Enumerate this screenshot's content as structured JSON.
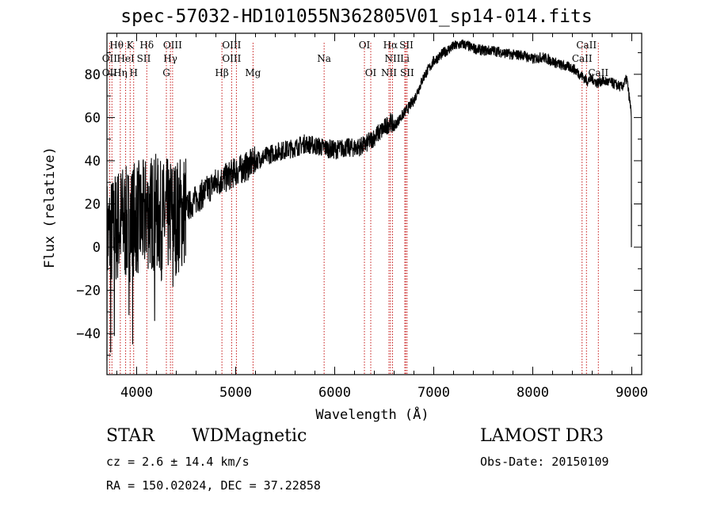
{
  "chart_data": {
    "type": "line",
    "title": "spec-57032-HD101055N362805V01_sp14-014.fits",
    "xlabel": "Wavelength (Å)",
    "ylabel": "Flux (relative)",
    "xlim": [
      3700,
      9100
    ],
    "ylim": [
      -59,
      99
    ],
    "xticks": [
      4000,
      5000,
      6000,
      7000,
      8000,
      9000
    ],
    "xtick_labels": [
      "4000",
      "5000",
      "6000",
      "7000",
      "8000",
      "9000"
    ],
    "yticks": [
      -40,
      -20,
      0,
      20,
      40,
      60,
      80
    ],
    "ytick_labels": [
      "−40",
      "−20",
      "0",
      "20",
      "40",
      "60",
      "80"
    ],
    "grid": false,
    "series": [
      {
        "name": "flux",
        "x": [
          3700,
          3750,
          3800,
          3850,
          3900,
          3950,
          4000,
          4050,
          4100,
          4150,
          4200,
          4250,
          4300,
          4350,
          4400,
          4450,
          4500,
          4600,
          4700,
          4800,
          4900,
          5000,
          5100,
          5200,
          5300,
          5400,
          5500,
          5600,
          5700,
          5800,
          5900,
          6000,
          6100,
          6200,
          6300,
          6400,
          6500,
          6560,
          6600,
          6700,
          6800,
          6900,
          7000,
          7100,
          7200,
          7300,
          7400,
          7500,
          7600,
          7700,
          7800,
          7900,
          8000,
          8100,
          8200,
          8300,
          8400,
          8500,
          8550,
          8600,
          8650,
          8700,
          8800,
          8850,
          8900,
          8950,
          9000
        ],
        "y": [
          5,
          6,
          10,
          12,
          10,
          12,
          14,
          12,
          16,
          16,
          16,
          12,
          14,
          16,
          14,
          16,
          18,
          22,
          26,
          30,
          32,
          35,
          37,
          40,
          42,
          44,
          45,
          46,
          48,
          47,
          46,
          45,
          46,
          46,
          47,
          51,
          55,
          58,
          56,
          62,
          68,
          79,
          86,
          90,
          93,
          94,
          92,
          91,
          91,
          90,
          89,
          89,
          87,
          88,
          86,
          84,
          83,
          79,
          77,
          78,
          76,
          77,
          76,
          75,
          74,
          78,
          60
        ]
      }
    ],
    "annotations": {
      "note": "dotted vertical lines mark spectral features",
      "lines": [
        3727,
        3750,
        3835,
        3889,
        3934,
        3970,
        4102,
        4300,
        4341,
        4363,
        4861,
        4959,
        5007,
        5175,
        5893,
        6300,
        6364,
        6548,
        6563,
        6584,
        6708,
        6717,
        6731,
        8498,
        8542,
        8662
      ],
      "labels": [
        {
          "text": "Hθ",
          "x": 3797,
          "row": 1
        },
        {
          "text": "K",
          "x": 3934,
          "row": 1
        },
        {
          "text": "Hδ",
          "x": 4102,
          "row": 1
        },
        {
          "text": "OIII",
          "x": 4363,
          "row": 1
        },
        {
          "text": "OIII",
          "x": 4959,
          "row": 1
        },
        {
          "text": "OI",
          "x": 6300,
          "row": 1
        },
        {
          "text": "Hα",
          "x": 6563,
          "row": 1
        },
        {
          "text": "SII",
          "x": 6724,
          "row": 1
        },
        {
          "text": "CaII",
          "x": 8542,
          "row": 1
        },
        {
          "text": "OII",
          "x": 3727,
          "row": 2
        },
        {
          "text": "HeI",
          "x": 3889,
          "row": 2
        },
        {
          "text": "SII",
          "x": 4072,
          "row": 2
        },
        {
          "text": "Hγ",
          "x": 4341,
          "row": 2
        },
        {
          "text": "OIII",
          "x": 4959,
          "row": 2
        },
        {
          "text": "Na",
          "x": 5893,
          "row": 2
        },
        {
          "text": "NII",
          "x": 6584,
          "row": 2
        },
        {
          "text": "Li",
          "x": 6708,
          "row": 2
        },
        {
          "text": "CaII",
          "x": 8498,
          "row": 2
        },
        {
          "text": "OII",
          "x": 3727,
          "row": 3
        },
        {
          "text": "Hη",
          "x": 3835,
          "row": 3
        },
        {
          "text": "H",
          "x": 3970,
          "row": 3
        },
        {
          "text": "G",
          "x": 4300,
          "row": 3
        },
        {
          "text": "Hβ",
          "x": 4861,
          "row": 3
        },
        {
          "text": "Mg",
          "x": 5175,
          "row": 3
        },
        {
          "text": "OI",
          "x": 6364,
          "row": 3
        },
        {
          "text": "NII",
          "x": 6548,
          "row": 3
        },
        {
          "text": "SII",
          "x": 6731,
          "row": 3
        },
        {
          "text": "CaII",
          "x": 8662,
          "row": 3
        }
      ]
    }
  },
  "footer": {
    "object_class": "STAR",
    "subclass": "WDMagnetic",
    "survey": "LAMOST DR3",
    "redshift": "cz = 2.6 ± 14.4 km/s",
    "obs_date": "Obs-Date: 20150109",
    "coords": "RA = 150.02024, DEC =  37.22858"
  },
  "colors": {
    "spectrum": "#000000",
    "line_marker": "#c00000",
    "axis": "#000000"
  }
}
